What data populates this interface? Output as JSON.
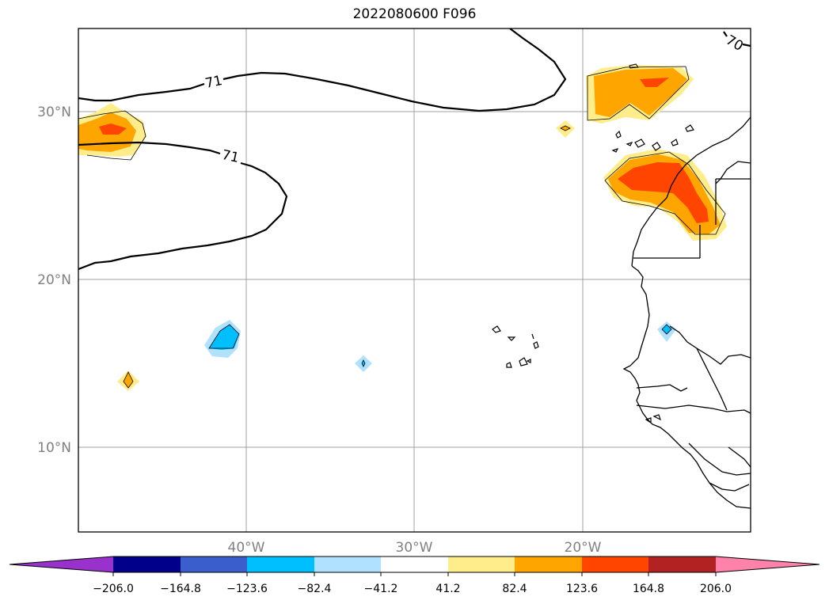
{
  "map": {
    "title": "2022080600 F096",
    "lat_labels": [
      "30°N",
      "20°N",
      "10°N"
    ],
    "lon_labels": [
      "40°W",
      "30°W",
      "20°W"
    ],
    "contour_labels": [
      "71",
      "71",
      "70"
    ]
  },
  "colorbar": {
    "tick_labels": [
      "−206.0",
      "−164.8",
      "−123.6",
      "−82.4",
      "−41.2",
      "41.2",
      "82.4",
      "123.6",
      "164.8",
      "206.0"
    ],
    "colors": [
      "#9932cc",
      "#00008b",
      "#3a5fcd",
      "#00bfff",
      "#b0e2ff",
      "#ffffff",
      "#ffec8b",
      "#ffa500",
      "#ff4500",
      "#b22222",
      "#ff82ab"
    ]
  }
}
